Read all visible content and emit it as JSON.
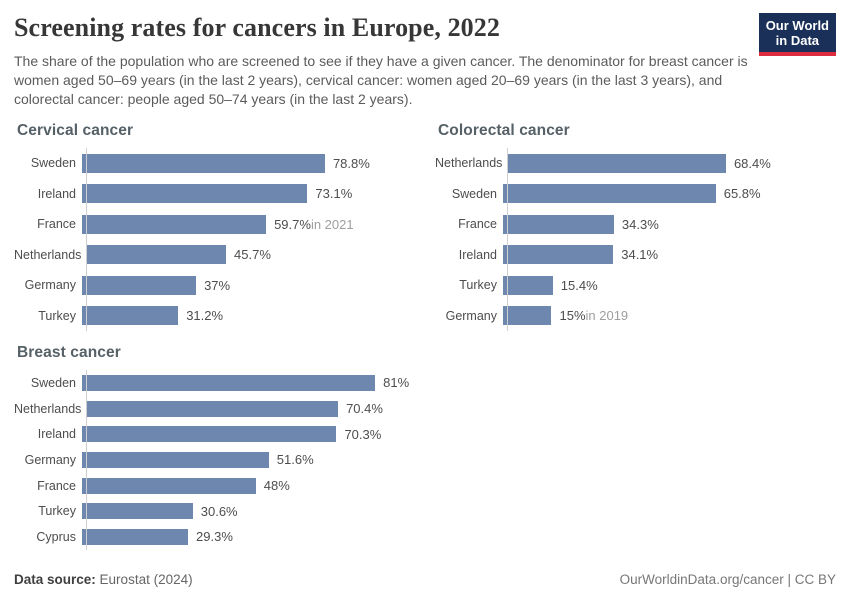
{
  "header": {
    "title": "Screening rates for cancers in Europe, 2022",
    "subtitle": "The share of the population who are screened to see if they have a given cancer. The denominator for breast cancer is women aged 50–69 years (in the last 2 years), cervical cancer: women aged 20–69 years (in the last 3 years), and colorectal cancer: people aged 50–74 years (in the last 2 years).",
    "logo_line1": "Our World",
    "logo_line2": "in Data"
  },
  "chart_data": [
    {
      "type": "bar",
      "orientation": "horizontal",
      "title": "Cervical cancer",
      "unit": "%",
      "xlim": [
        0,
        108
      ],
      "grid": false,
      "bars": [
        {
          "country": "Sweden",
          "value": 78.8,
          "label": "78.8%"
        },
        {
          "country": "Ireland",
          "value": 73.1,
          "label": "73.1%"
        },
        {
          "country": "France",
          "value": 59.7,
          "label": "59.7%",
          "note": "in 2021"
        },
        {
          "country": "Netherlands",
          "value": 45.7,
          "label": "45.7%"
        },
        {
          "country": "Germany",
          "value": 37,
          "label": "37%"
        },
        {
          "country": "Turkey",
          "value": 31.2,
          "label": "31.2%"
        }
      ]
    },
    {
      "type": "bar",
      "orientation": "horizontal",
      "title": "Colorectal cancer",
      "unit": "%",
      "xlim": [
        0,
        103
      ],
      "grid": false,
      "bars": [
        {
          "country": "Netherlands",
          "value": 68.4,
          "label": "68.4%"
        },
        {
          "country": "Sweden",
          "value": 65.8,
          "label": "65.8%"
        },
        {
          "country": "France",
          "value": 34.3,
          "label": "34.3%"
        },
        {
          "country": "Ireland",
          "value": 34.1,
          "label": "34.1%"
        },
        {
          "country": "Turkey",
          "value": 15.4,
          "label": "15.4%"
        },
        {
          "country": "Germany",
          "value": 15,
          "label": "15%",
          "note": "in 2019"
        }
      ]
    },
    {
      "type": "bar",
      "orientation": "horizontal",
      "title": "Breast cancer",
      "unit": "%",
      "xlim": [
        0,
        92
      ],
      "grid": false,
      "bars": [
        {
          "country": "Sweden",
          "value": 81,
          "label": "81%"
        },
        {
          "country": "Netherlands",
          "value": 70.4,
          "label": "70.4%"
        },
        {
          "country": "Ireland",
          "value": 70.3,
          "label": "70.3%"
        },
        {
          "country": "Germany",
          "value": 51.6,
          "label": "51.6%"
        },
        {
          "country": "France",
          "value": 48,
          "label": "48%"
        },
        {
          "country": "Turkey",
          "value": 30.6,
          "label": "30.6%"
        },
        {
          "country": "Cyprus",
          "value": 29.3,
          "label": "29.3%"
        }
      ]
    }
  ],
  "colors": {
    "bar": "#6e87ae",
    "axis": "#cfcfcf",
    "logo_navy": "#1a3058",
    "logo_red": "#dc2c3e",
    "value_note_gray": "#9e9e9e"
  },
  "footer": {
    "source_label": "Data source:",
    "source_value": "Eurostat (2024)",
    "credit": "OurWorldinData.org/cancer | CC BY"
  }
}
